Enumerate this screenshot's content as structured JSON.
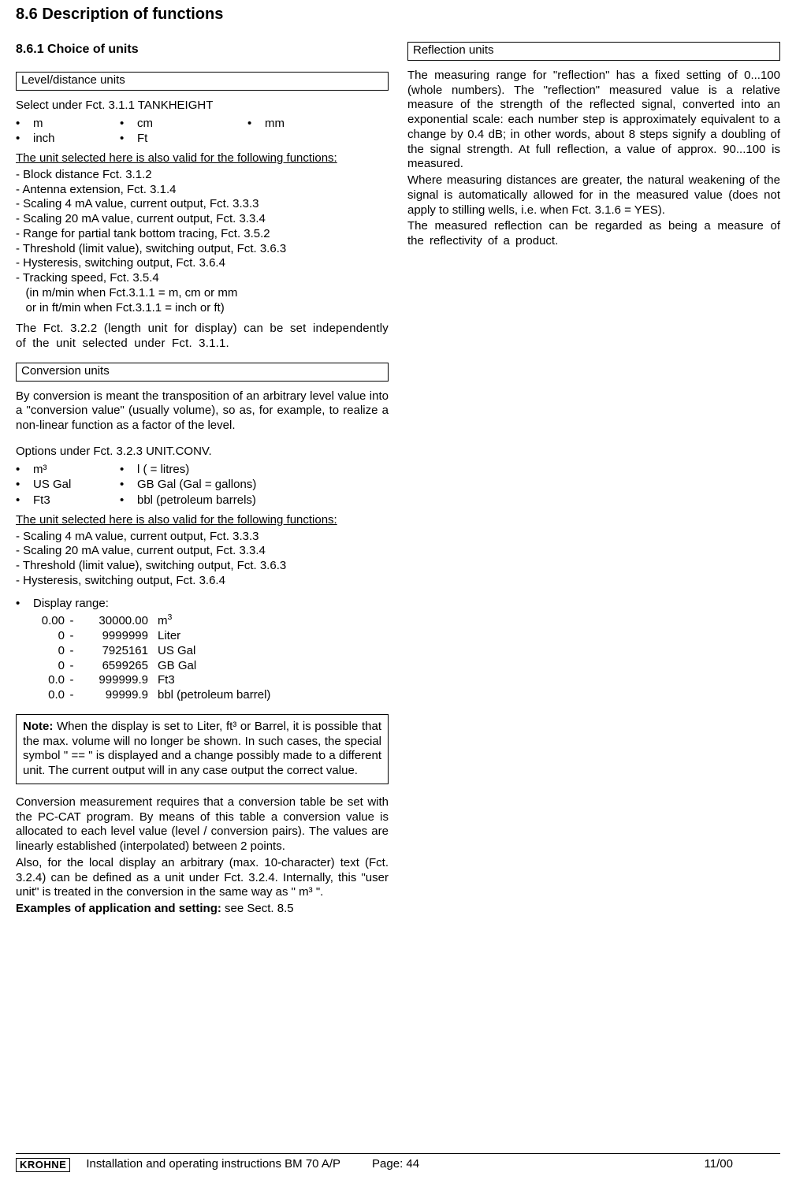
{
  "title": "8.6 Description of functions",
  "subtitle": "8.6.1 Choice of units",
  "left": {
    "level_header": "Level/distance units",
    "level_intro": "Select under Fct. 3.1.1 TANKHEIGHT",
    "units_row1": {
      "a": "m",
      "b": "cm",
      "c": "mm"
    },
    "units_row2": {
      "a": "inch",
      "b": "Ft"
    },
    "valid_label": "The unit selected here is also valid for the following functions:",
    "fns": [
      "- Block distance Fct. 3.1.2",
      "- Antenna extension, Fct. 3.1.4",
      "- Scaling 4 mA value, current output, Fct. 3.3.3",
      "- Scaling 20 mA value, current output, Fct. 3.3.4",
      "- Range for partial tank bottom tracing, Fct. 3.5.2",
      "- Threshold (limit value), switching output, Fct. 3.6.3",
      "- Hysteresis, switching output, Fct. 3.6.4",
      "- Tracking speed, Fct. 3.5.4",
      "   (in m/min when Fct.3.1.1 = m, cm or mm",
      "   or in ft/min when Fct.3.1.1 = inch or ft)"
    ],
    "para_322": "The Fct. 3.2.2 (length unit for display) can be set independently of the unit selected under Fct. 3.1.1.",
    "conv_header": "Conversion units",
    "conv_intro": "By conversion is meant the transposition of an arbitrary level value into a \"conversion value\" (usually volume), so as, for example, to realize a non-linear function as a factor of the level.",
    "conv_options_label": "Options under Fct. 3.2.3  UNIT.CONV.",
    "conv_units": [
      {
        "a": "m³",
        "b": "l ( = litres)"
      },
      {
        "a": "US Gal",
        "b": "GB Gal (Gal = gallons)"
      },
      {
        "a": "Ft3",
        "b": "bbl (petroleum barrels)"
      }
    ],
    "conv_valid_label": "The unit selected here is also valid for the following functions:",
    "conv_fns": [
      "- Scaling 4 mA value, current output, Fct. 3.3.3",
      "- Scaling 20 mA value, current output, Fct. 3.3.4",
      "- Threshold (limit value), switching output, Fct. 3.6.3",
      "- Hysteresis, switching output, Fct. 3.6.4"
    ],
    "display_range_label": "Display range:",
    "ranges": [
      {
        "min": "0.00",
        "max": "30000.00",
        "unit_html": "m<sup>3</sup>"
      },
      {
        "min": "0",
        "max": "9999999",
        "unit_html": "Liter"
      },
      {
        "min": "0",
        "max": "7925161",
        "unit_html": "US Gal"
      },
      {
        "min": "0",
        "max": "6599265",
        "unit_html": "GB Gal"
      },
      {
        "min": "0.0",
        "max": "999999.9",
        "unit_html": "Ft3"
      },
      {
        "min": "0.0",
        "max": "99999.9",
        "unit_html": "bbl (petroleum barrel)"
      }
    ],
    "note_label": "Note:",
    "note_body": " When the display is set to Liter, ft³ or Barrel, it is possible that the max. volume will no longer be shown. In such cases, the special symbol \" == \" is displayed and a change possibly made to a different unit. The current output will in any case output the correct value.",
    "conv_para1": "Conversion measurement requires that a conversion table be set with the PC-CAT program. By means of this table a conversion value is allocated to each level value (level / conversion pairs). The values are linearly established (interpolated) between 2 points.",
    "conv_para2": "Also, for the local display an arbitrary (max. 10-character) text (Fct. 3.2.4) can be defined as a unit under Fct. 3.2.4. Internally, this \"user unit\" is treated in the conversion in the same way as \" m³ \".",
    "examples_label": "Examples of application and setting:",
    "examples_ref": " see Sect. 8.5"
  },
  "right": {
    "refl_header": "Reflection units",
    "refl_p1": "The measuring range for \"reflection\" has a fixed setting of 0...100 (whole numbers). The \"reflection\" measured value is a relative measure of the strength of the reflected signal, converted into an exponential scale: each number step is approximately equivalent to a change by 0.4 dB; in other words, about 8 steps signify a doubling of the signal strength.  At full reflection, a value of approx. 90...100 is measured.",
    "refl_p2": "Where measuring distances are greater, the natural weakening of the signal is automatically allowed for in the measured value (does not apply to stilling wells, i.e. when Fct. 3.1.6 = YES).",
    "refl_p3": "The measured reflection can be regarded as being a measure of the reflectivity of a product."
  },
  "footer": {
    "logo": "KROHNE",
    "doc": "Installation and operating instructions BM 70 A/P",
    "page_label": "Page: 44",
    "date": "11/00"
  }
}
